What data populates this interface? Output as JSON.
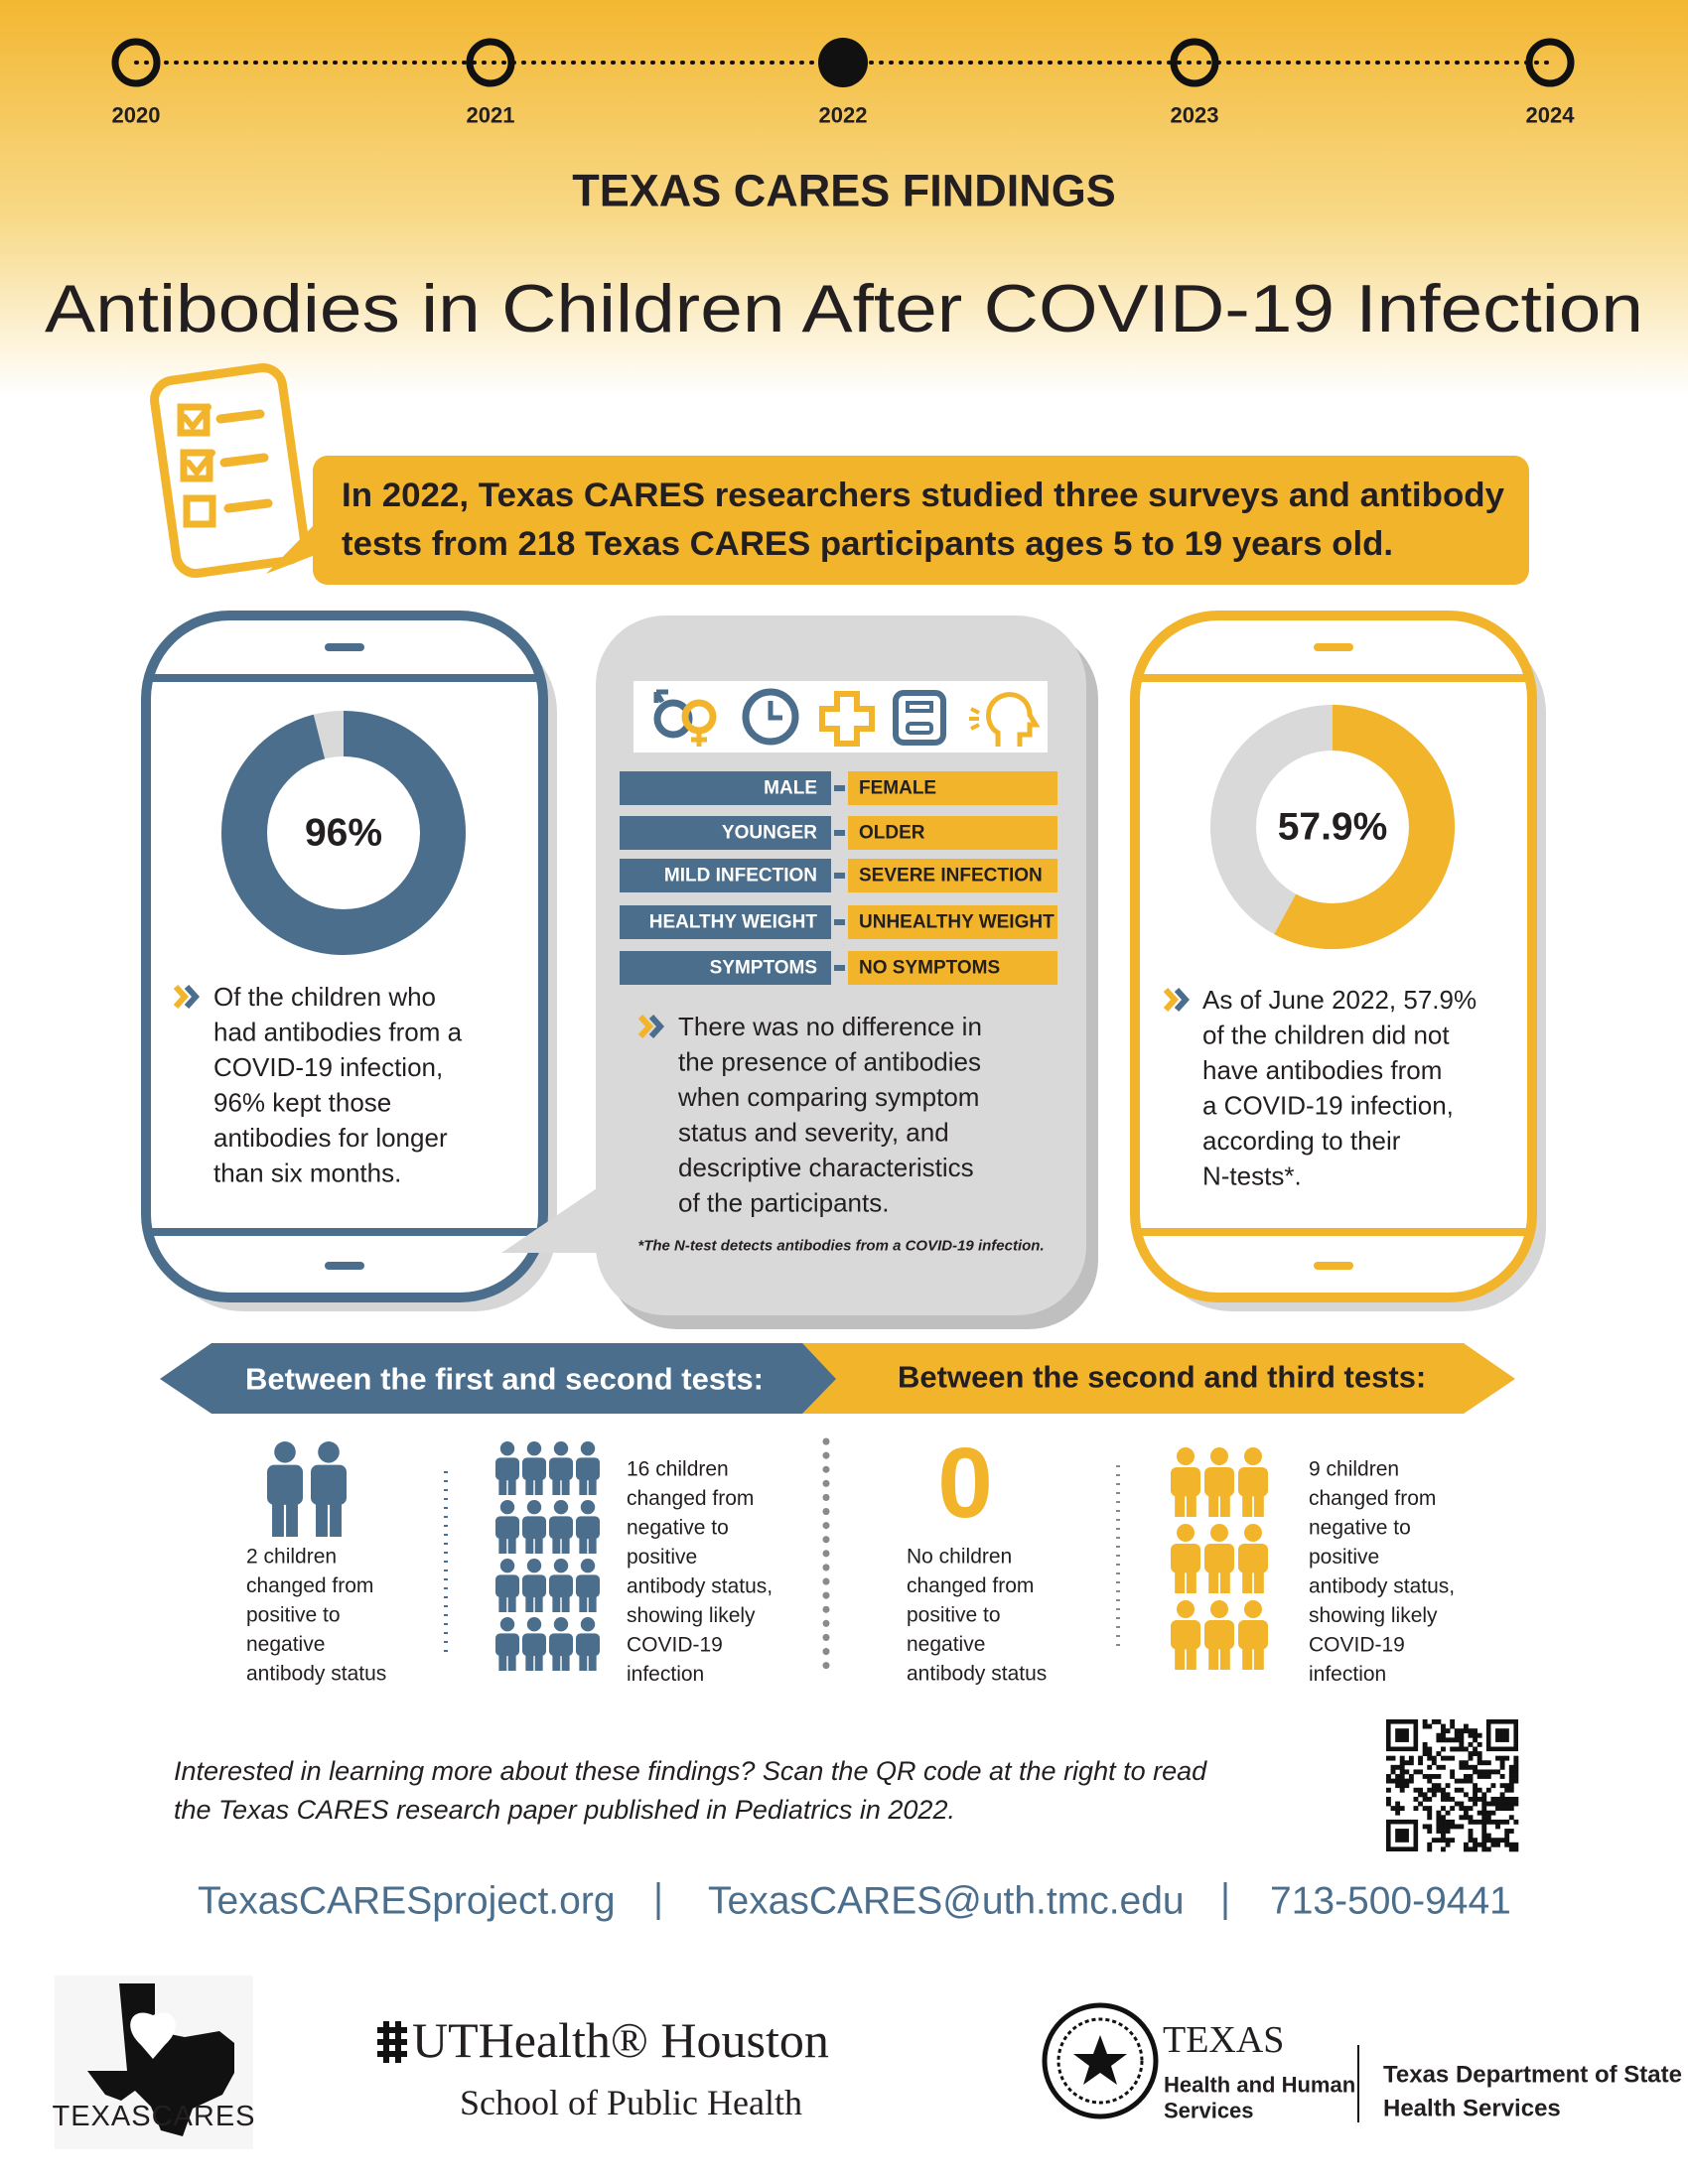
{
  "timeline": {
    "years": [
      "2020",
      "2021",
      "2022",
      "2023",
      "2024"
    ]
  },
  "header": {
    "kicker": "TEXAS CARES FINDINGS",
    "title": "Antibodies in Children After COVID-19 Infection"
  },
  "intro": {
    "lines": [
      "In 2022, Texas CARES researchers studied three surveys and antibody",
      "tests from 218 Texas CARES participants ages 5 to 19 years old."
    ]
  },
  "left_panel": {
    "donut": {
      "value": 96,
      "label": "96%"
    },
    "lines": [
      "Of the children who",
      "had antibodies from a",
      "COVID-19 infection,",
      "96% kept those",
      "antibodies for longer",
      "than six months."
    ]
  },
  "middle_panel": {
    "comparisons": [
      [
        "MALE",
        "FEMALE"
      ],
      [
        "YOUNGER",
        "OLDER"
      ],
      [
        "MILD INFECTION",
        "SEVERE INFECTION"
      ],
      [
        "HEALTHY WEIGHT",
        "UNHEALTHY WEIGHT"
      ],
      [
        "SYMPTOMS",
        "NO SYMPTOMS"
      ]
    ],
    "lines": [
      "There was no difference in",
      "the presence of antibodies",
      "when comparing symptom",
      "status and severity, and",
      "descriptive characteristics",
      "of the participants."
    ],
    "footnote": "*The N-test detects antibodies from a COVID-19 infection."
  },
  "right_panel": {
    "donut": {
      "value": 57.9,
      "label": "57.9%"
    },
    "lines": [
      "As of June 2022, 57.9%",
      "of the children did not",
      "have antibodies from",
      "a COVID-19 infection,",
      "according to their",
      "N-tests*."
    ]
  },
  "arrows": [
    "Between the first and second tests:",
    "Between the second and third tests:"
  ],
  "changes": [
    {
      "count": 2,
      "lines": [
        "2 children",
        "changed from",
        "positive to",
        "negative",
        "antibody status"
      ]
    },
    {
      "count": 16,
      "lines": [
        "16 children",
        "changed from",
        "negative to",
        "positive",
        "antibody status,",
        "showing likely",
        "COVID-19",
        "infection"
      ]
    },
    {
      "count": 0,
      "lines": [
        "No children",
        "changed from",
        "positive to",
        "negative",
        "antibody status"
      ]
    },
    {
      "count": 9,
      "lines": [
        "9 children",
        "changed from",
        "negative to",
        "positive",
        "antibody status,",
        "showing likely",
        "COVID-19",
        "infection"
      ]
    }
  ],
  "cta": {
    "lines": [
      "Interested in learning more about these findings? Scan the QR code at the right to read",
      "the Texas CARES research paper published in Pediatrics in 2022."
    ]
  },
  "contact": [
    "TexasCARESproject.org",
    "TexasCARES@uth.tmc.edu",
    "713-500-9441"
  ],
  "logos": {
    "texascares": "TEXASCARES",
    "uthealth": "UTHealth® Houston",
    "uthealth_school": "School of Public Health",
    "hhs": [
      "TEXAS",
      "Health and Human",
      "Services"
    ],
    "dshs": [
      "Texas Department of State",
      "Health Services"
    ]
  }
}
